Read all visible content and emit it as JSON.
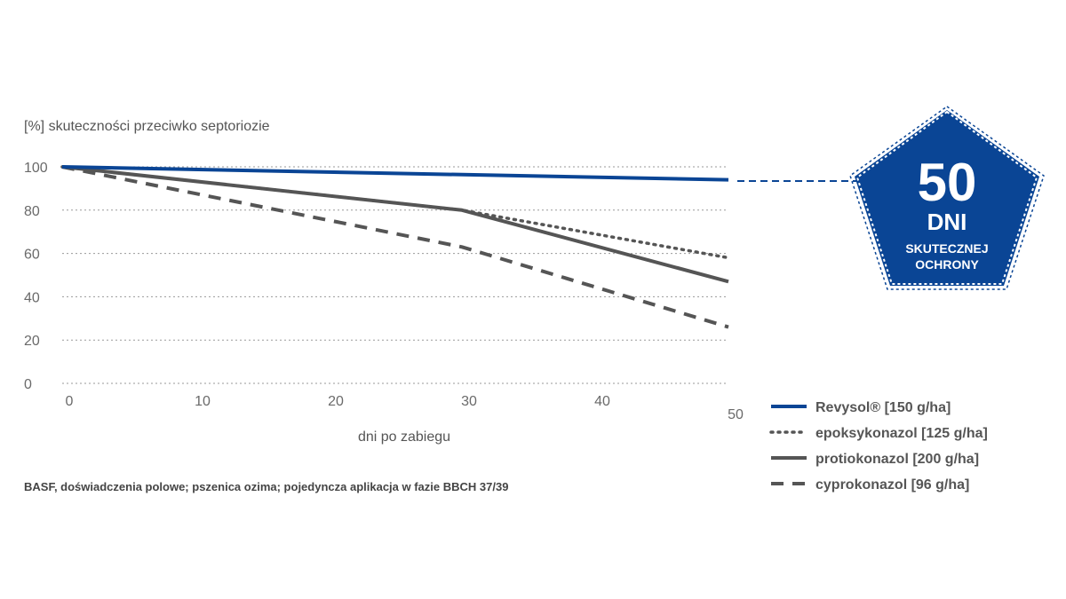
{
  "chart_data": {
    "type": "line",
    "ylabel": "[%] skuteczności przeciwko septoriozie",
    "xlabel": "dni po zabiegu",
    "xlim": [
      0,
      50
    ],
    "ylim": [
      0,
      100
    ],
    "x_ticks": [
      0,
      10,
      20,
      30,
      40,
      50
    ],
    "y_ticks": [
      0,
      20,
      40,
      60,
      80,
      100
    ],
    "grid": "horizontal dotted",
    "legend_position": "bottom-right",
    "series": [
      {
        "name": "Revysol® [150 g/ha]",
        "style": "solid",
        "color": "#0a4595",
        "x": [
          0,
          50
        ],
        "y": [
          100,
          94
        ]
      },
      {
        "name": "epoksykonazol [125 g/ha]",
        "style": "dotted",
        "color": "#555555",
        "x": [
          0,
          30,
          50
        ],
        "y": [
          100,
          80,
          58
        ]
      },
      {
        "name": "protiokonazol [200 g/ha]",
        "style": "solid",
        "color": "#555555",
        "x": [
          0,
          30,
          50
        ],
        "y": [
          100,
          80,
          47
        ]
      },
      {
        "name": "cyprokonazol [96 g/ha]",
        "style": "dashed",
        "color": "#555555",
        "x": [
          0,
          30,
          50
        ],
        "y": [
          100,
          63,
          26
        ]
      }
    ],
    "badge": {
      "number": "50",
      "unit": "DNI",
      "line1": "SKUTECZNEJ",
      "line2": "OCHRONY",
      "color": "#0a4595"
    },
    "source": "BASF, doświadczenia polowe; pszenica ozima; pojedyncza aplikacja w fazie BBCH 37/39"
  }
}
